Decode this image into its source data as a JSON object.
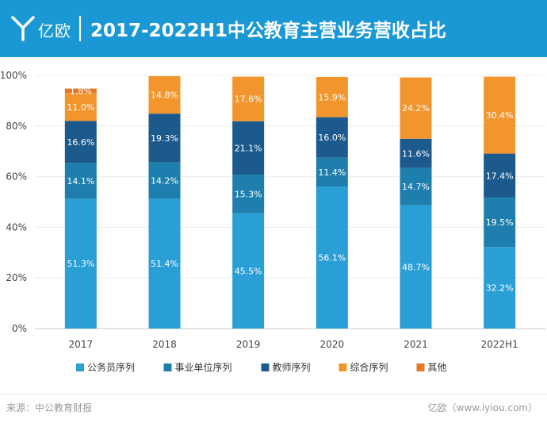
{
  "header": {
    "logo_text": "亿欧",
    "title": "2017-2022H1中公教育主营业务营收占比"
  },
  "footer": {
    "source": "来源：中公教育财报",
    "brand": "亿欧（www.iyiou.com）"
  },
  "colors": {
    "header_bg": "#1a98d5",
    "公务员序列": "#2a9fd6",
    "事业单位序列": "#1e7fae",
    "教师序列": "#1c5a8e",
    "综合序列": "#f3952d",
    "其他": "#e5792a"
  },
  "chart_data": {
    "type": "bar",
    "stacked": true,
    "categories": [
      "2017",
      "2018",
      "2019",
      "2020",
      "2021",
      "2022H1"
    ],
    "series": [
      {
        "name": "公务员序列",
        "values": [
          51.3,
          51.4,
          45.5,
          56.1,
          48.7,
          32.2
        ],
        "labels": [
          "51.3%",
          "51.4%",
          "45.5%",
          "56.1%",
          "48.7%",
          "32.2%"
        ]
      },
      {
        "name": "事业单位序列",
        "values": [
          14.1,
          14.2,
          15.3,
          11.4,
          14.7,
          19.5
        ],
        "labels": [
          "14.1%",
          "14.2%",
          "15.3%",
          "11.4%",
          "14.7%",
          "19.5%"
        ]
      },
      {
        "name": "教师序列",
        "values": [
          16.6,
          19.3,
          21.1,
          16.0,
          11.6,
          17.4
        ],
        "labels": [
          "16.6%",
          "19.3%",
          "21.1%",
          "16.0%",
          "11.6%",
          "17.4%"
        ]
      },
      {
        "name": "综合序列",
        "values": [
          11.0,
          14.8,
          17.6,
          15.9,
          24.2,
          30.4
        ],
        "labels": [
          "11.0%",
          "14.8%",
          "17.6%",
          "15.9%",
          "24.2%",
          "30.4%"
        ]
      },
      {
        "name": "其他",
        "values": [
          1.8,
          0,
          0,
          0,
          0,
          0
        ],
        "labels": [
          "1.8%",
          "",
          "",
          "",
          "",
          ""
        ]
      }
    ],
    "ylim": [
      0,
      100
    ],
    "yticks": [
      "0%",
      "20%",
      "40%",
      "60%",
      "80%",
      "100%"
    ],
    "legend_position": "bottom",
    "xlabel": "",
    "ylabel": ""
  }
}
